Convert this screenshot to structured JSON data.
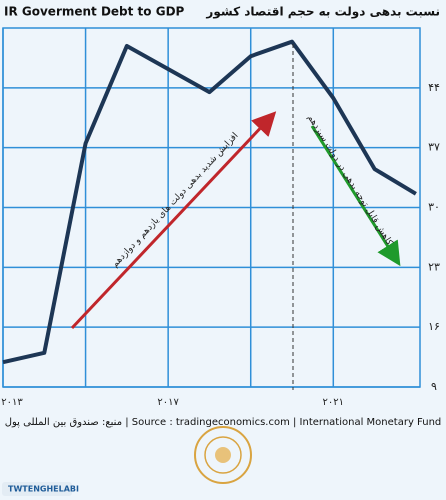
{
  "chart_data": {
    "type": "line",
    "title": "IR Goverment Debt to GDP",
    "subtitle": "نسبت بدهی دولت به حجم اقتصاد کشور",
    "annotations": [
      "افزایش شدید بدهی دولت های یازدهم و دوازدهم",
      "کاهش قابل توجه بدهی در دولت سیزدهم"
    ],
    "source": "منبع: صندوق بین المللی پول | Source : tradingeconomics.com | International Monetary Fund",
    "footer": "TWTENGHELABI",
    "x": [
      2013,
      2014,
      2015,
      2016,
      2018,
      2019,
      2020,
      2021,
      2022,
      2023
    ],
    "series": [
      {
        "name": "IR Goverment Debt to GDP",
        "color": "#1d3655",
        "values": [
          11.9,
          13.0,
          37.5,
          48.9,
          43.5,
          47.7,
          49.4,
          42.8,
          34.5,
          31.6
        ]
      }
    ],
    "xlim": [
      2013,
      2023.1
    ],
    "xticks": [
      {
        "value": 2013,
        "label": "۲۰۱۳"
      },
      {
        "value": 2017,
        "label": "۲۰۱۷"
      },
      {
        "value": 2021,
        "label": "۲۰۲۱"
      }
    ],
    "ylim": [
      9,
      51
    ],
    "yticks": [
      {
        "value": 9,
        "label": "۹"
      },
      {
        "value": 16,
        "label": "۱۶"
      },
      {
        "value": 23,
        "label": "۲۳"
      },
      {
        "value": 30,
        "label": "۳۰"
      },
      {
        "value": 37,
        "label": "۳۷"
      },
      {
        "value": 44,
        "label": "۴۴"
      }
    ],
    "grid": true
  }
}
